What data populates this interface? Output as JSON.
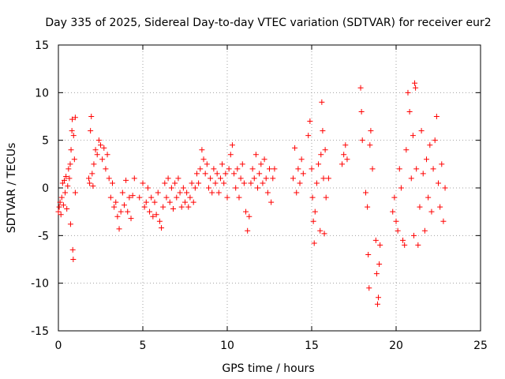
{
  "chart_data": {
    "type": "scatter",
    "title": "Day 335 of 2025, Sidereal Day-to-day VTEC variation (SDTVAR) for receiver eur2",
    "xlabel": "GPS time / hours",
    "ylabel": "SDTVAR / TECUs",
    "xlim": [
      0,
      25
    ],
    "ylim": [
      -15,
      15
    ],
    "xticks": [
      0,
      5,
      10,
      15,
      20,
      25
    ],
    "yticks": [
      -15,
      -10,
      -5,
      0,
      5,
      10,
      15
    ],
    "xtick_labels": [
      "0",
      "5",
      "10",
      "15",
      "20",
      "25"
    ],
    "ytick_labels": [
      "-15",
      "-10",
      "-5",
      "0",
      "5",
      "10",
      "15"
    ],
    "grid": true,
    "marker": "plus",
    "series": [
      {
        "name": "SDTVAR",
        "color": "#ff0000",
        "points": [
          [
            0.0,
            -2.5
          ],
          [
            0.05,
            -2.0
          ],
          [
            0.1,
            -1.5
          ],
          [
            0.15,
            -2.8
          ],
          [
            0.2,
            -1.0
          ],
          [
            0.25,
            0.5
          ],
          [
            0.3,
            -1.8
          ],
          [
            0.35,
            0.8
          ],
          [
            0.4,
            -0.5
          ],
          [
            0.45,
            1.2
          ],
          [
            0.5,
            -2.2
          ],
          [
            0.55,
            0.2
          ],
          [
            0.6,
            2.0
          ],
          [
            0.65,
            1.0
          ],
          [
            0.7,
            2.5
          ],
          [
            0.72,
            -3.8
          ],
          [
            0.75,
            4.0
          ],
          [
            0.8,
            6.0
          ],
          [
            0.82,
            7.2
          ],
          [
            0.85,
            -6.5
          ],
          [
            0.88,
            -7.5
          ],
          [
            0.9,
            5.5
          ],
          [
            0.95,
            3.0
          ],
          [
            1.0,
            -0.5
          ],
          [
            1.0,
            7.4
          ],
          [
            1.8,
            1.0
          ],
          [
            1.85,
            0.5
          ],
          [
            1.9,
            6.0
          ],
          [
            1.95,
            7.5
          ],
          [
            2.0,
            1.5
          ],
          [
            2.05,
            0.2
          ],
          [
            2.1,
            2.5
          ],
          [
            2.2,
            4.0
          ],
          [
            2.3,
            3.5
          ],
          [
            2.4,
            5.0
          ],
          [
            2.5,
            4.5
          ],
          [
            2.6,
            3.0
          ],
          [
            2.7,
            4.2
          ],
          [
            2.8,
            2.0
          ],
          [
            2.9,
            3.5
          ],
          [
            3.0,
            1.0
          ],
          [
            3.1,
            -1.0
          ],
          [
            3.2,
            0.5
          ],
          [
            3.3,
            -2.0
          ],
          [
            3.4,
            -1.5
          ],
          [
            3.5,
            -3.0
          ],
          [
            3.6,
            -4.3
          ],
          [
            3.7,
            -2.5
          ],
          [
            3.8,
            -0.5
          ],
          [
            3.9,
            -1.8
          ],
          [
            4.0,
            0.8
          ],
          [
            4.1,
            -2.5
          ],
          [
            4.2,
            -1.0
          ],
          [
            4.3,
            -3.2
          ],
          [
            4.4,
            -0.8
          ],
          [
            4.5,
            1.0
          ],
          [
            4.8,
            -1.0
          ],
          [
            5.0,
            0.5
          ],
          [
            5.1,
            -2.0
          ],
          [
            5.2,
            -1.5
          ],
          [
            5.3,
            0.0
          ],
          [
            5.4,
            -2.5
          ],
          [
            5.5,
            -1.0
          ],
          [
            5.6,
            -3.0
          ],
          [
            5.7,
            -1.5
          ],
          [
            5.8,
            -2.8
          ],
          [
            5.9,
            -0.5
          ],
          [
            6.0,
            -3.5
          ],
          [
            6.1,
            -4.2
          ],
          [
            6.2,
            -2.0
          ],
          [
            6.3,
            0.5
          ],
          [
            6.4,
            -1.0
          ],
          [
            6.5,
            1.0
          ],
          [
            6.6,
            -1.5
          ],
          [
            6.7,
            0.0
          ],
          [
            6.8,
            -2.2
          ],
          [
            6.9,
            0.5
          ],
          [
            7.0,
            -1.0
          ],
          [
            7.1,
            1.0
          ],
          [
            7.2,
            -0.5
          ],
          [
            7.3,
            -2.0
          ],
          [
            7.4,
            0.0
          ],
          [
            7.5,
            -1.5
          ],
          [
            7.6,
            -0.5
          ],
          [
            7.7,
            -2.0
          ],
          [
            7.8,
            -1.0
          ],
          [
            7.9,
            0.5
          ],
          [
            8.0,
            -1.5
          ],
          [
            8.1,
            0.0
          ],
          [
            8.2,
            1.5
          ],
          [
            8.3,
            0.5
          ],
          [
            8.4,
            2.0
          ],
          [
            8.5,
            4.0
          ],
          [
            8.6,
            3.0
          ],
          [
            8.7,
            1.5
          ],
          [
            8.8,
            2.5
          ],
          [
            8.9,
            0.0
          ],
          [
            9.0,
            1.0
          ],
          [
            9.1,
            -0.5
          ],
          [
            9.2,
            2.0
          ],
          [
            9.3,
            0.5
          ],
          [
            9.4,
            1.5
          ],
          [
            9.5,
            -0.5
          ],
          [
            9.6,
            1.0
          ],
          [
            9.7,
            2.5
          ],
          [
            9.8,
            0.5
          ],
          [
            9.9,
            1.5
          ],
          [
            10.0,
            -1.0
          ],
          [
            10.1,
            2.0
          ],
          [
            10.2,
            3.5
          ],
          [
            10.3,
            4.5
          ],
          [
            10.4,
            1.5
          ],
          [
            10.5,
            0.0
          ],
          [
            10.6,
            2.0
          ],
          [
            10.7,
            -1.0
          ],
          [
            10.8,
            1.0
          ],
          [
            10.9,
            2.5
          ],
          [
            11.0,
            0.5
          ],
          [
            11.1,
            -2.5
          ],
          [
            11.2,
            -4.5
          ],
          [
            11.3,
            -3.0
          ],
          [
            11.4,
            0.5
          ],
          [
            11.5,
            2.0
          ],
          [
            11.6,
            1.0
          ],
          [
            11.7,
            3.5
          ],
          [
            11.8,
            0.0
          ],
          [
            11.9,
            1.5
          ],
          [
            12.0,
            2.5
          ],
          [
            12.1,
            0.5
          ],
          [
            12.2,
            3.0
          ],
          [
            12.3,
            1.0
          ],
          [
            12.4,
            -0.5
          ],
          [
            12.5,
            2.0
          ],
          [
            12.6,
            -1.5
          ],
          [
            12.7,
            1.0
          ],
          [
            12.8,
            2.0
          ],
          [
            13.9,
            1.0
          ],
          [
            14.0,
            4.2
          ],
          [
            14.1,
            -0.5
          ],
          [
            14.2,
            2.0
          ],
          [
            14.3,
            0.5
          ],
          [
            14.4,
            3.0
          ],
          [
            14.5,
            1.5
          ],
          [
            14.8,
            5.5
          ],
          [
            14.9,
            7.0
          ],
          [
            15.0,
            2.0
          ],
          [
            15.05,
            -1.0
          ],
          [
            15.1,
            -3.5
          ],
          [
            15.15,
            -5.8
          ],
          [
            15.2,
            -2.5
          ],
          [
            15.3,
            0.5
          ],
          [
            15.4,
            2.5
          ],
          [
            15.5,
            -4.5
          ],
          [
            15.55,
            3.5
          ],
          [
            15.6,
            9.0
          ],
          [
            15.65,
            6.0
          ],
          [
            15.7,
            1.0
          ],
          [
            15.75,
            -4.8
          ],
          [
            15.8,
            4.0
          ],
          [
            15.85,
            -1.0
          ],
          [
            16.0,
            1.0
          ],
          [
            16.8,
            2.5
          ],
          [
            16.9,
            3.5
          ],
          [
            17.0,
            4.5
          ],
          [
            17.1,
            3.0
          ],
          [
            17.9,
            10.5
          ],
          [
            17.95,
            8.0
          ],
          [
            18.0,
            5.0
          ],
          [
            18.2,
            -0.5
          ],
          [
            18.3,
            -2.0
          ],
          [
            18.35,
            -7.0
          ],
          [
            18.4,
            -10.5
          ],
          [
            18.45,
            4.5
          ],
          [
            18.5,
            6.0
          ],
          [
            18.6,
            2.0
          ],
          [
            18.8,
            -5.5
          ],
          [
            18.85,
            -9.0
          ],
          [
            18.9,
            -12.2
          ],
          [
            18.95,
            -11.5
          ],
          [
            19.0,
            -8.0
          ],
          [
            19.05,
            -6.0
          ],
          [
            19.8,
            -2.5
          ],
          [
            19.9,
            -1.0
          ],
          [
            20.0,
            -3.5
          ],
          [
            20.1,
            -4.5
          ],
          [
            20.2,
            2.0
          ],
          [
            20.3,
            0.0
          ],
          [
            20.4,
            -5.5
          ],
          [
            20.5,
            -6.0
          ],
          [
            20.6,
            4.0
          ],
          [
            20.7,
            10.0
          ],
          [
            20.8,
            8.0
          ],
          [
            20.9,
            1.0
          ],
          [
            21.0,
            5.5
          ],
          [
            21.05,
            -5.0
          ],
          [
            21.1,
            11.0
          ],
          [
            21.15,
            10.5
          ],
          [
            21.2,
            2.0
          ],
          [
            21.3,
            -6.0
          ],
          [
            21.4,
            -2.0
          ],
          [
            21.5,
            6.0
          ],
          [
            21.6,
            1.5
          ],
          [
            21.7,
            -4.5
          ],
          [
            21.8,
            3.0
          ],
          [
            21.9,
            -1.0
          ],
          [
            22.0,
            4.5
          ],
          [
            22.1,
            -2.5
          ],
          [
            22.2,
            2.0
          ],
          [
            22.3,
            5.0
          ],
          [
            22.4,
            7.5
          ],
          [
            22.5,
            0.5
          ],
          [
            22.6,
            -2.0
          ],
          [
            22.7,
            2.5
          ],
          [
            22.8,
            -3.5
          ],
          [
            22.9,
            0.0
          ]
        ]
      }
    ]
  }
}
